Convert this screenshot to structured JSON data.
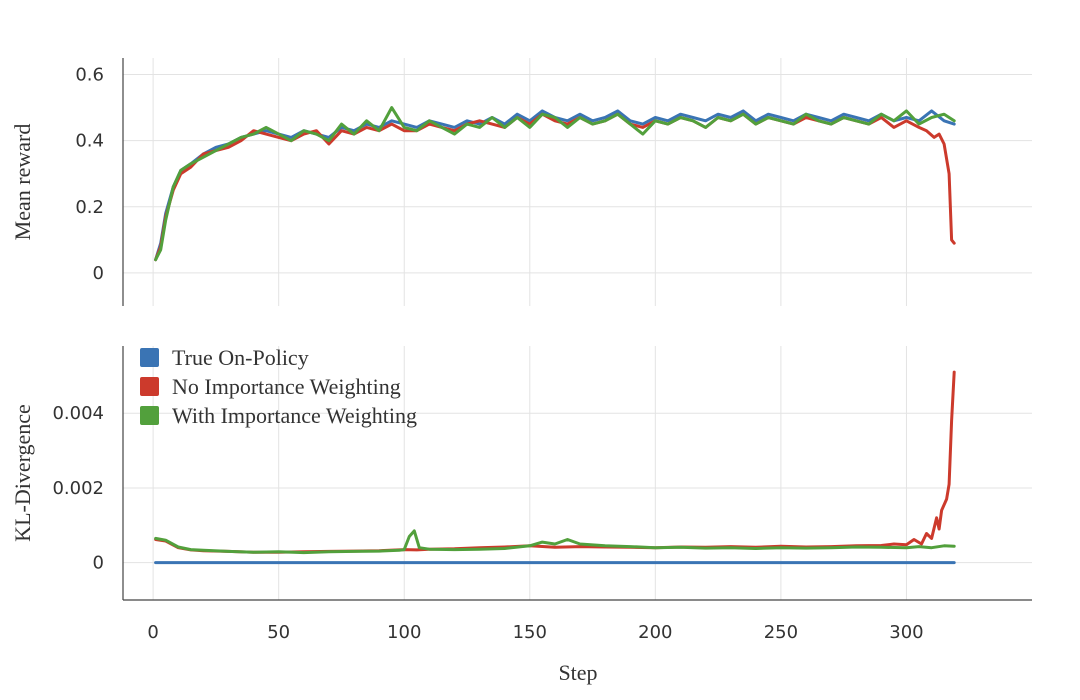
{
  "chart_data": [
    {
      "type": "line",
      "id": "reward",
      "ylabel": "Mean reward",
      "xlabel": "",
      "xlim": [
        -12,
        350
      ],
      "ylim": [
        -0.1,
        0.65
      ],
      "xticks": [
        0,
        50,
        100,
        150,
        200,
        250,
        300
      ],
      "yticks": [
        0,
        0.2,
        0.4,
        0.6
      ],
      "ytick_labels": [
        "0",
        "0.2",
        "0.4",
        "0.6"
      ],
      "grid": true,
      "series": [
        {
          "name": "True On-Policy",
          "color": "#3a74b4",
          "x": [
            1,
            3,
            5,
            8,
            11,
            15,
            20,
            25,
            30,
            35,
            40,
            45,
            50,
            55,
            60,
            65,
            70,
            75,
            80,
            85,
            90,
            95,
            100,
            105,
            110,
            115,
            120,
            125,
            130,
            135,
            140,
            145,
            150,
            155,
            160,
            165,
            170,
            175,
            180,
            185,
            190,
            195,
            200,
            205,
            210,
            215,
            220,
            225,
            230,
            235,
            240,
            245,
            250,
            255,
            260,
            265,
            270,
            275,
            280,
            285,
            290,
            295,
            300,
            305,
            310,
            315,
            319
          ],
          "y": [
            0.04,
            0.09,
            0.18,
            0.26,
            0.31,
            0.33,
            0.36,
            0.38,
            0.39,
            0.41,
            0.42,
            0.43,
            0.42,
            0.41,
            0.43,
            0.42,
            0.41,
            0.44,
            0.43,
            0.45,
            0.44,
            0.46,
            0.45,
            0.44,
            0.46,
            0.45,
            0.44,
            0.46,
            0.45,
            0.47,
            0.45,
            0.48,
            0.46,
            0.49,
            0.47,
            0.46,
            0.48,
            0.46,
            0.47,
            0.49,
            0.46,
            0.45,
            0.47,
            0.46,
            0.48,
            0.47,
            0.46,
            0.48,
            0.47,
            0.49,
            0.46,
            0.48,
            0.47,
            0.46,
            0.48,
            0.47,
            0.46,
            0.48,
            0.47,
            0.46,
            0.48,
            0.46,
            0.47,
            0.46,
            0.49,
            0.46,
            0.45
          ]
        },
        {
          "name": "No Importance Weighting",
          "color": "#cc3a2c",
          "x": [
            1,
            3,
            5,
            8,
            11,
            15,
            20,
            25,
            30,
            35,
            40,
            45,
            50,
            55,
            60,
            65,
            70,
            75,
            80,
            85,
            90,
            95,
            100,
            105,
            110,
            115,
            120,
            125,
            130,
            135,
            140,
            145,
            150,
            155,
            160,
            165,
            170,
            175,
            180,
            185,
            190,
            195,
            200,
            205,
            210,
            215,
            220,
            225,
            230,
            235,
            240,
            245,
            250,
            255,
            260,
            265,
            270,
            275,
            280,
            285,
            290,
            295,
            300,
            305,
            308,
            311,
            313,
            315,
            317,
            318,
            319
          ],
          "y": [
            0.04,
            0.08,
            0.17,
            0.25,
            0.3,
            0.32,
            0.36,
            0.37,
            0.38,
            0.4,
            0.43,
            0.42,
            0.41,
            0.4,
            0.42,
            0.43,
            0.39,
            0.43,
            0.42,
            0.44,
            0.43,
            0.45,
            0.43,
            0.43,
            0.45,
            0.44,
            0.43,
            0.45,
            0.46,
            0.45,
            0.44,
            0.47,
            0.45,
            0.48,
            0.46,
            0.45,
            0.47,
            0.45,
            0.46,
            0.48,
            0.45,
            0.44,
            0.46,
            0.45,
            0.47,
            0.46,
            0.44,
            0.47,
            0.46,
            0.48,
            0.45,
            0.47,
            0.46,
            0.45,
            0.47,
            0.46,
            0.45,
            0.47,
            0.46,
            0.45,
            0.47,
            0.44,
            0.46,
            0.44,
            0.43,
            0.41,
            0.42,
            0.39,
            0.3,
            0.1,
            0.09
          ]
        },
        {
          "name": "With Importance Weighting",
          "color": "#52a03c",
          "x": [
            1,
            3,
            5,
            8,
            11,
            15,
            20,
            25,
            30,
            35,
            40,
            45,
            50,
            55,
            60,
            65,
            70,
            75,
            80,
            85,
            90,
            95,
            100,
            105,
            110,
            115,
            120,
            125,
            130,
            135,
            140,
            145,
            150,
            155,
            160,
            165,
            170,
            175,
            180,
            185,
            190,
            195,
            200,
            205,
            210,
            215,
            220,
            225,
            230,
            235,
            240,
            245,
            250,
            255,
            260,
            265,
            270,
            275,
            280,
            285,
            290,
            295,
            300,
            305,
            310,
            315,
            319
          ],
          "y": [
            0.04,
            0.07,
            0.16,
            0.26,
            0.31,
            0.33,
            0.35,
            0.37,
            0.39,
            0.41,
            0.42,
            0.44,
            0.42,
            0.4,
            0.43,
            0.42,
            0.4,
            0.45,
            0.42,
            0.46,
            0.43,
            0.5,
            0.44,
            0.43,
            0.46,
            0.44,
            0.42,
            0.45,
            0.44,
            0.47,
            0.44,
            0.47,
            0.44,
            0.48,
            0.47,
            0.44,
            0.47,
            0.45,
            0.46,
            0.48,
            0.45,
            0.42,
            0.46,
            0.45,
            0.47,
            0.46,
            0.44,
            0.47,
            0.46,
            0.48,
            0.45,
            0.47,
            0.46,
            0.45,
            0.48,
            0.46,
            0.45,
            0.47,
            0.46,
            0.45,
            0.48,
            0.46,
            0.49,
            0.45,
            0.47,
            0.48,
            0.46
          ]
        }
      ]
    },
    {
      "type": "line",
      "id": "kl",
      "ylabel": "KL-Divergence",
      "xlabel": "Step",
      "xlim": [
        -12,
        350
      ],
      "ylim": [
        -0.001,
        0.0058
      ],
      "xticks": [
        0,
        50,
        100,
        150,
        200,
        250,
        300
      ],
      "xtick_labels": [
        "0",
        "50",
        "100",
        "150",
        "200",
        "250",
        "300"
      ],
      "yticks": [
        0,
        0.002,
        0.004
      ],
      "ytick_labels": [
        "0",
        "0.002",
        "0.004"
      ],
      "grid": true,
      "legend": {
        "placement": "top-left",
        "entries": [
          "True On-Policy",
          "No Importance Weighting",
          "With Importance Weighting"
        ]
      },
      "series": [
        {
          "name": "True On-Policy",
          "color": "#3a74b4",
          "x": [
            1,
            319
          ],
          "y": [
            0.0,
            0.0
          ]
        },
        {
          "name": "No Importance Weighting",
          "color": "#cc3a2c",
          "x": [
            1,
            5,
            10,
            15,
            20,
            30,
            40,
            50,
            60,
            70,
            80,
            90,
            100,
            105,
            110,
            120,
            130,
            140,
            150,
            160,
            170,
            180,
            190,
            200,
            210,
            220,
            230,
            240,
            250,
            260,
            270,
            280,
            290,
            295,
            300,
            303,
            306,
            308,
            310,
            312,
            313,
            314,
            316,
            317,
            318,
            319
          ],
          "y": [
            0.00062,
            0.00058,
            0.0004,
            0.00034,
            0.00032,
            0.0003,
            0.00028,
            0.00028,
            0.00029,
            0.0003,
            0.00031,
            0.00032,
            0.00035,
            0.00034,
            0.00036,
            0.00037,
            0.0004,
            0.00042,
            0.00045,
            0.00041,
            0.00043,
            0.00042,
            0.00041,
            0.0004,
            0.00042,
            0.00041,
            0.00043,
            0.00041,
            0.00044,
            0.00042,
            0.00043,
            0.00045,
            0.00046,
            0.0005,
            0.00048,
            0.00062,
            0.0005,
            0.00078,
            0.00065,
            0.0012,
            0.0009,
            0.0014,
            0.0017,
            0.0021,
            0.0038,
            0.0051
          ]
        },
        {
          "name": "With Importance Weighting",
          "color": "#52a03c",
          "x": [
            1,
            5,
            10,
            15,
            20,
            30,
            40,
            50,
            60,
            70,
            80,
            90,
            98,
            100,
            102,
            104,
            106,
            110,
            120,
            130,
            140,
            150,
            155,
            160,
            165,
            170,
            180,
            190,
            200,
            210,
            220,
            230,
            240,
            250,
            260,
            270,
            280,
            290,
            300,
            305,
            310,
            315,
            319
          ],
          "y": [
            0.00065,
            0.0006,
            0.00042,
            0.00035,
            0.00033,
            0.0003,
            0.00028,
            0.00029,
            0.00027,
            0.00029,
            0.0003,
            0.00031,
            0.00033,
            0.00035,
            0.0007,
            0.00085,
            0.0004,
            0.00036,
            0.00035,
            0.00036,
            0.00038,
            0.00045,
            0.00055,
            0.0005,
            0.00062,
            0.0005,
            0.00045,
            0.00043,
            0.0004,
            0.00041,
            0.00039,
            0.0004,
            0.00038,
            0.0004,
            0.00039,
            0.0004,
            0.00042,
            0.00041,
            0.0004,
            0.00043,
            0.0004,
            0.00045,
            0.00044
          ]
        }
      ]
    }
  ]
}
